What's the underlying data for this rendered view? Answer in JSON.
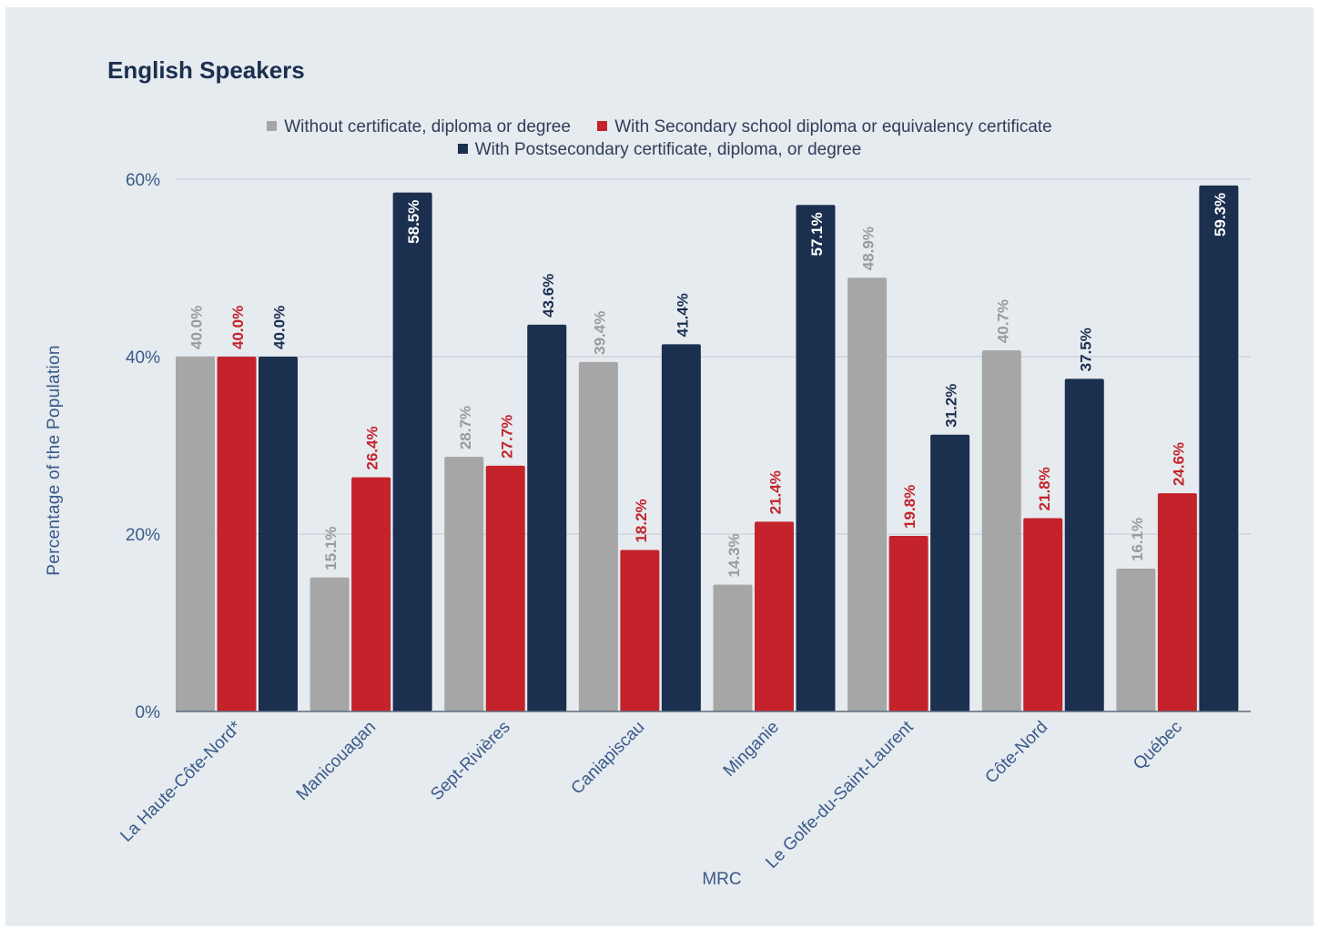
{
  "chart_data": {
    "type": "bar",
    "title": "English Speakers",
    "xlabel": "MRC",
    "ylabel": "Percentage of the Population",
    "ylim": [
      0,
      60
    ],
    "yticks": [
      "0%",
      "20%",
      "40%",
      "60%"
    ],
    "grid": true,
    "legend_position": "top-center",
    "categories": [
      "La Haute-Côte-Nord*",
      "Manicouagan",
      "Sept-Rivières",
      "Caniapiscau",
      "Minganie",
      "Le Golfe-du-Saint-Laurent",
      "Côte-Nord",
      "Québec"
    ],
    "series": [
      {
        "name": "Without certificate, diploma or degree",
        "color": "#a6a6a6",
        "label_color": "#9a9a9a",
        "values": [
          40.0,
          15.1,
          28.7,
          39.4,
          14.3,
          48.9,
          40.7,
          16.1
        ],
        "labels": [
          "40.0%",
          "15.1%",
          "28.7%",
          "39.4%",
          "14.3%",
          "48.9%",
          "40.7%",
          "16.1%"
        ]
      },
      {
        "name": "With Secondary school diploma or equivalency certificate",
        "color": "#c4232b",
        "label_color": "#c4232b",
        "values": [
          40.0,
          26.4,
          27.7,
          18.2,
          21.4,
          19.8,
          21.8,
          24.6
        ],
        "labels": [
          "40.0%",
          "26.4%",
          "27.7%",
          "18.2%",
          "21.4%",
          "19.8%",
          "21.8%",
          "24.6%"
        ]
      },
      {
        "name": "With Postsecondary certificate, diploma, or degree",
        "color": "#1b2f4f",
        "label_color": "#1b2f4f",
        "values": [
          40.0,
          58.5,
          43.6,
          41.4,
          57.1,
          31.2,
          37.5,
          59.3
        ],
        "labels": [
          "40.0%",
          "58.5%",
          "43.6%",
          "41.4%",
          "57.1%",
          "31.2%",
          "37.5%",
          "59.3%"
        ]
      }
    ]
  }
}
